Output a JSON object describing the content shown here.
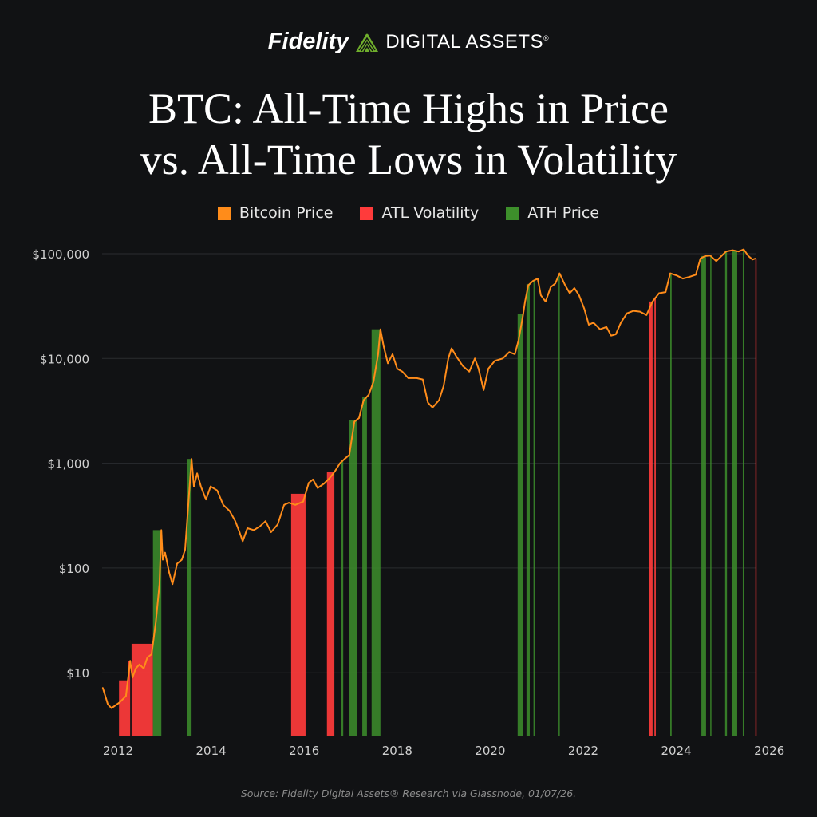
{
  "header": {
    "logo_brand": "Fidelity",
    "logo_sub": "DIGITAL ASSETS",
    "logo_reg": "®",
    "title_line1": "BTC: All-Time Highs in Price",
    "title_line2": "vs. All-Time Lows in Volatility"
  },
  "source": "Source: Fidelity Digital Assets® Research via Glassnode, 01/07/26.",
  "colors": {
    "background": "#111214",
    "price": "#ff8c1a",
    "atl_volatility": "#ff3b3b",
    "ath_price": "#3d8f2b",
    "grid": "#2a2c2f",
    "axis_text": "#d0d0d0"
  },
  "chart_data": {
    "type": "line",
    "title": "BTC: All-Time Highs in Price vs. All-Time Lows in Volatility",
    "xlabel": "",
    "ylabel": "",
    "y_scale": "log",
    "ylim": [
      2.5,
      130000
    ],
    "xlim": [
      2011.67,
      2026.3
    ],
    "grid": "horizontal",
    "legend_placement": "top-center",
    "legend": [
      "Bitcoin Price",
      "ATL Volatility",
      "ATH Price"
    ],
    "x_ticks": [
      "2012",
      "2014",
      "2016",
      "2018",
      "2020",
      "2022",
      "2024",
      "2026"
    ],
    "y_ticks": [
      {
        "value": 10,
        "label": "$10"
      },
      {
        "value": 100,
        "label": "$100"
      },
      {
        "value": 1000,
        "label": "$1,000"
      },
      {
        "value": 10000,
        "label": "$10,000"
      },
      {
        "value": 100000,
        "label": "$100,000"
      }
    ],
    "series": [
      {
        "name": "Bitcoin Price",
        "x": [
          2011.67,
          2011.78,
          2011.86,
          2012.03,
          2012.17,
          2012.26,
          2012.31,
          2012.38,
          2012.46,
          2012.55,
          2012.63,
          2012.72,
          2012.81,
          2012.89,
          2012.93,
          2012.96,
          2013.01,
          2013.1,
          2013.17,
          2013.27,
          2013.37,
          2013.44,
          2013.51,
          2013.58,
          2013.63,
          2013.7,
          2013.78,
          2013.89,
          2013.99,
          2014.13,
          2014.26,
          2014.4,
          2014.52,
          2014.61,
          2014.68,
          2014.78,
          2014.92,
          2015.05,
          2015.17,
          2015.29,
          2015.43,
          2015.57,
          2015.67,
          2015.81,
          2015.98,
          2016.1,
          2016.19,
          2016.29,
          2016.43,
          2016.56,
          2016.67,
          2016.77,
          2016.87,
          2016.97,
          2017.08,
          2017.18,
          2017.28,
          2017.39,
          2017.49,
          2017.59,
          2017.64,
          2017.71,
          2017.8,
          2017.9,
          2018.0,
          2018.11,
          2018.24,
          2018.42,
          2018.55,
          2018.66,
          2018.76,
          2018.9,
          2019.0,
          2019.1,
          2019.17,
          2019.27,
          2019.41,
          2019.55,
          2019.67,
          2019.75,
          2019.86,
          2019.96,
          2020.1,
          2020.27,
          2020.41,
          2020.53,
          2020.61,
          2020.7,
          2020.75,
          2020.82,
          2020.92,
          2021.02,
          2021.09,
          2021.19,
          2021.3,
          2021.4,
          2021.49,
          2021.61,
          2021.71,
          2021.81,
          2021.91,
          2022.02,
          2022.12,
          2022.22,
          2022.36,
          2022.5,
          2022.6,
          2022.7,
          2022.81,
          2022.94,
          2023.08,
          2023.22,
          2023.36,
          2023.49,
          2023.63,
          2023.77,
          2023.87,
          2024.01,
          2024.14,
          2024.28,
          2024.42,
          2024.52,
          2024.62,
          2024.73,
          2024.86,
          2024.97,
          2025.07,
          2025.21,
          2025.34,
          2025.45,
          2025.55,
          2025.64,
          2025.7
        ],
        "y": [
          7.2,
          5,
          4.6,
          5.2,
          6,
          13,
          9,
          11,
          12,
          11,
          14,
          15,
          30,
          70,
          230,
          120,
          140,
          90,
          70,
          110,
          120,
          150,
          400,
          1100,
          600,
          800,
          600,
          450,
          600,
          550,
          400,
          350,
          280,
          220,
          180,
          240,
          230,
          250,
          280,
          220,
          260,
          400,
          420,
          400,
          430,
          650,
          700,
          580,
          640,
          730,
          850,
          1000,
          1100,
          1200,
          2500,
          2700,
          4000,
          4500,
          6000,
          11000,
          19000,
          13000,
          9000,
          11000,
          8000,
          7500,
          6500,
          6500,
          6300,
          3800,
          3400,
          4000,
          5500,
          10000,
          12500,
          10500,
          8500,
          7500,
          10000,
          8000,
          5000,
          8000,
          9500,
          10000,
          11500,
          11000,
          15000,
          25000,
          35000,
          50000,
          55000,
          58000,
          40000,
          35000,
          48000,
          52000,
          65000,
          50000,
          42000,
          47000,
          40000,
          30000,
          21000,
          22000,
          19000,
          20000,
          16500,
          17000,
          22000,
          27000,
          28500,
          28000,
          26000,
          35000,
          42000,
          43000,
          65000,
          62000,
          58000,
          60000,
          63000,
          90000,
          95000,
          96000,
          85000,
          95000,
          105000,
          108000,
          105000,
          110000,
          95000,
          88000,
          90000
        ]
      }
    ],
    "bands": [
      {
        "type": "ATL Volatility",
        "ranges": [
          [
            2012.02,
            2012.21
          ],
          [
            2012.22,
            2012.26
          ],
          [
            2012.29,
            2012.75
          ],
          [
            2015.72,
            2016.03
          ],
          [
            2016.49,
            2016.65
          ],
          [
            2023.41,
            2023.49
          ],
          [
            2023.53,
            2023.56
          ],
          [
            2025.7,
            2025.71
          ]
        ]
      },
      {
        "type": "ATH Price",
        "ranges": [
          [
            2012.75,
            2012.93
          ],
          [
            2013.49,
            2013.58
          ],
          [
            2016.8,
            2016.84
          ],
          [
            2016.97,
            2017.13
          ],
          [
            2017.25,
            2017.35
          ],
          [
            2017.45,
            2017.64
          ],
          [
            2020.59,
            2020.71
          ],
          [
            2020.78,
            2020.85
          ],
          [
            2020.93,
            2020.97
          ],
          [
            2021.47,
            2021.49
          ],
          [
            2023.87,
            2023.9
          ],
          [
            2024.54,
            2024.64
          ],
          [
            2024.73,
            2024.74
          ],
          [
            2025.05,
            2025.09
          ],
          [
            2025.19,
            2025.31
          ],
          [
            2025.43,
            2025.45
          ]
        ]
      }
    ]
  }
}
